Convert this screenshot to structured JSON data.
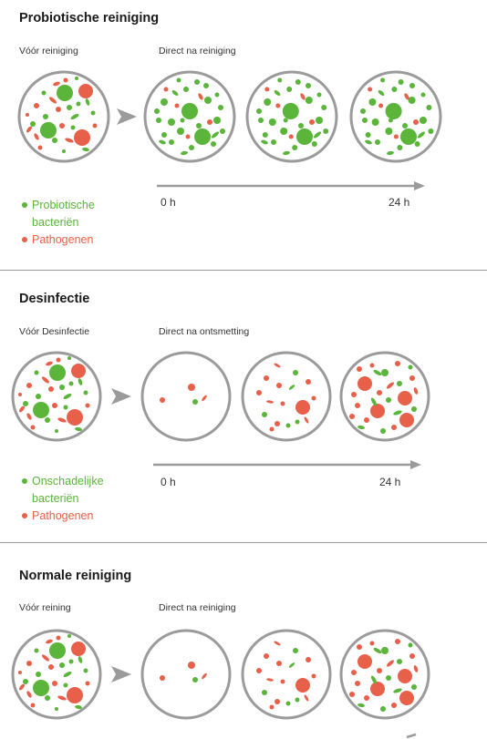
{
  "colors": {
    "green": "#5ab53a",
    "red": "#e8604a",
    "circle": "#9b9b9b",
    "arrow": "#9b9b9b"
  },
  "sections": [
    {
      "title": "Probiotische reiniging",
      "before_label": "Vóór reiniging",
      "after_label": "Direct na reiniging",
      "time_start": "0 h",
      "time_end": "24 h",
      "legend": [
        {
          "text": "Probiotische bacteriën",
          "color": "green"
        },
        {
          "text": "Pathogenen",
          "color": "red"
        }
      ]
    },
    {
      "title": "Desinfectie",
      "before_label": "Vóór Desinfectie",
      "after_label": "Direct na ontsmetting",
      "time_start": "0 h",
      "time_end": "24 h",
      "legend": [
        {
          "text": "Onschadelijke bacteriën",
          "color": "green"
        },
        {
          "text": "Pathogenen",
          "color": "red"
        }
      ]
    },
    {
      "title": "Normale reiniging",
      "before_label": "Vóór reining",
      "after_label": "Direct na reiniging"
    }
  ]
}
